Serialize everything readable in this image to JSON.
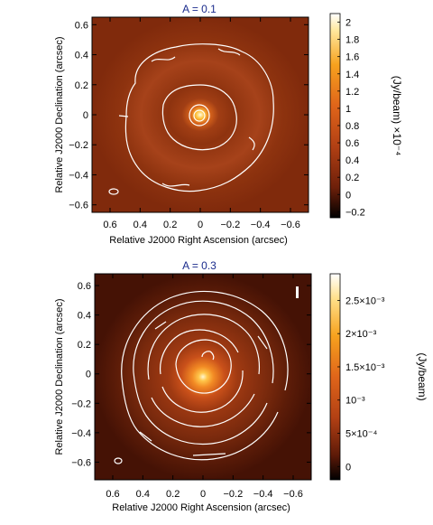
{
  "chart_data": [
    {
      "type": "heatmap",
      "title": "A = 0.1",
      "xlabel": "Relative J2000 Right Ascension (arcsec)",
      "ylabel": "Relative J2000 Declination (arcsec)",
      "xticks": [
        0.6,
        0.4,
        0.2,
        0,
        -0.2,
        -0.4,
        -0.6
      ],
      "xtick_labels": [
        "0.6",
        "0.4",
        "0.2",
        "0",
        "−0.2",
        "−0.4",
        "−0.6"
      ],
      "yticks": [
        0.6,
        0.4,
        0.2,
        0,
        -0.2,
        -0.4,
        -0.6
      ],
      "ytick_labels": [
        "0.6",
        "0.4",
        "0.2",
        "0",
        "−0.2",
        "−0.4",
        "−0.6"
      ],
      "xlim": [
        0.72,
        -0.72
      ],
      "ylim": [
        -0.65,
        0.65
      ],
      "x_reversed": true,
      "colorbar": {
        "label": "(Jy/beam)  ×10⁻⁴",
        "ticks": [
          2,
          1.8,
          1.6,
          1.4,
          1.2,
          1,
          0.8,
          0.6,
          0.4,
          0.2,
          0,
          -0.2
        ],
        "tick_labels": [
          "2",
          "1.8",
          "1.6",
          "1.4",
          "1.2",
          "1",
          "0.8",
          "0.6",
          "0.4",
          "0.2",
          "0",
          "−0.2"
        ],
        "range": [
          -0.27,
          2.1
        ]
      },
      "contours_arcsec": [
        0.03,
        0.1,
        0.3,
        0.52
      ],
      "colors": {
        "background": "#832a0c",
        "ring": "#a33f14",
        "peak": "#fffbe0"
      }
    },
    {
      "type": "heatmap",
      "title": "A = 0.3",
      "xlabel": "Relative J2000 Right Ascension (arcsec)",
      "ylabel": "Relative J2000 Declination (arcsec)",
      "xticks": [
        0.6,
        0.4,
        0.2,
        0,
        -0.2,
        -0.4,
        -0.6
      ],
      "xtick_labels": [
        "0.6",
        "0.4",
        "0.2",
        "0",
        "−0.2",
        "−0.4",
        "−0.6"
      ],
      "yticks": [
        0.6,
        0.4,
        0.2,
        0,
        -0.2,
        -0.4,
        -0.6
      ],
      "ytick_labels": [
        "0.6",
        "0.4",
        "0.2",
        "0",
        "−0.2",
        "−0.4",
        "−0.6"
      ],
      "xlim": [
        0.72,
        -0.72
      ],
      "ylim": [
        -0.72,
        0.68
      ],
      "x_reversed": true,
      "colorbar": {
        "label": "(Jy/beam)",
        "ticks": [
          0.0025,
          0.002,
          0.0015,
          0.001,
          0.0005,
          0
        ],
        "tick_labels": [
          "2.5×10⁻³",
          "2×10⁻³",
          "1.5×10⁻³",
          "10⁻³",
          "5×10⁻⁴",
          "0"
        ],
        "range": [
          -0.0002,
          0.0029
        ]
      },
      "contours_arcsec": [
        0.04,
        0.1,
        0.16,
        0.22,
        0.28,
        0.34
      ],
      "colors": {
        "background": "#4a1306",
        "ring": "#7e2a0e",
        "peak": "#fff7d0"
      }
    }
  ]
}
